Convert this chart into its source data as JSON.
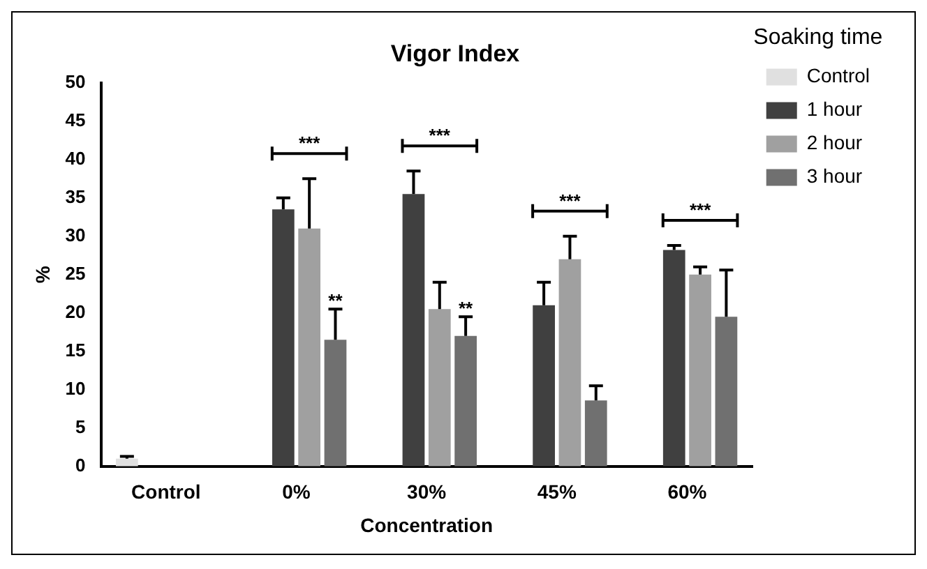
{
  "chart_data": {
    "type": "bar",
    "title": "Vigor Index",
    "xlabel": "Concentration",
    "ylabel": "%",
    "legend_title": "Soaking time",
    "categories": [
      "Control",
      "0%",
      "30%",
      "45%",
      "60%"
    ],
    "series": [
      {
        "name": "Control",
        "color": "#e0e0e0",
        "values": [
          1,
          null,
          null,
          null,
          null
        ],
        "errors": [
          [
            1,
            1.3
          ],
          null,
          null,
          null,
          null
        ]
      },
      {
        "name": "1 hour",
        "color": "#404040",
        "values": [
          null,
          33.5,
          35.5,
          21,
          28.2
        ],
        "errors": [
          null,
          [
            33.5,
            35
          ],
          [
            35.5,
            38.5
          ],
          [
            21,
            24
          ],
          [
            28.2,
            28.8
          ]
        ]
      },
      {
        "name": "2 hour",
        "color": "#a0a0a0",
        "values": [
          null,
          31,
          20.5,
          27,
          25
        ],
        "errors": [
          null,
          [
            31,
            37.5
          ],
          [
            20.5,
            24
          ],
          [
            27,
            30
          ],
          [
            25,
            26
          ]
        ]
      },
      {
        "name": "3 hour",
        "color": "#707070",
        "values": [
          null,
          16.5,
          17,
          8.6,
          19.5
        ],
        "errors": [
          null,
          [
            16.5,
            20.5
          ],
          [
            17,
            19.5
          ],
          [
            8.6,
            10.5
          ],
          [
            19.5,
            25.6
          ]
        ]
      }
    ],
    "annotations": [
      "***",
      "***",
      "***",
      "***",
      {
        "text": "**",
        "x": "0%",
        "y": 21.5
      },
      {
        "text": "**",
        "x": "30%",
        "y": 20.5
      }
    ],
    "ylim": [
      0,
      50
    ],
    "yticks": [
      0,
      5,
      10,
      15,
      20,
      25,
      30,
      35,
      40,
      45,
      50
    ],
    "grid": false,
    "legend": "right"
  }
}
